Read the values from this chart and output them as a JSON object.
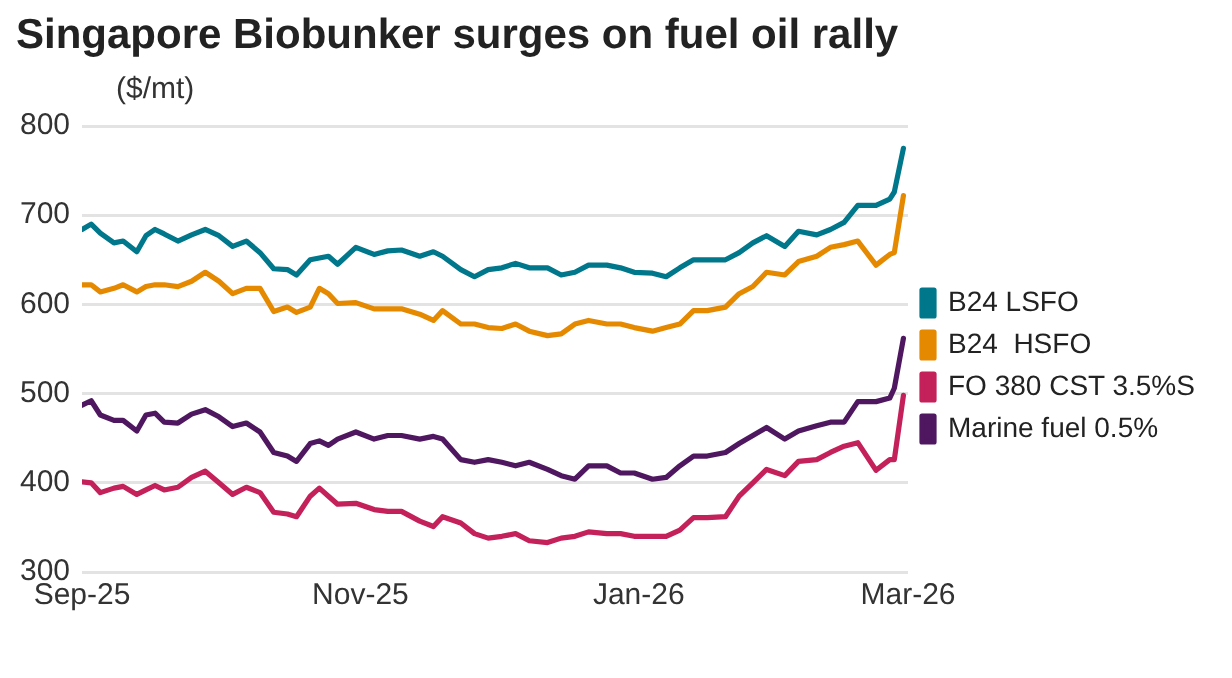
{
  "chart_data": {
    "type": "line",
    "title": "Singapore Biobunker surges on fuel oil rally",
    "ylabel": "($/mt)",
    "x": [
      "2025-09-01",
      "2025-09-03",
      "2025-09-05",
      "2025-09-08",
      "2025-09-10",
      "2025-09-13",
      "2025-09-15",
      "2025-09-17",
      "2025-09-19",
      "2025-09-22",
      "2025-09-25",
      "2025-09-28",
      "2025-10-01",
      "2025-10-04",
      "2025-10-07",
      "2025-10-10",
      "2025-10-13",
      "2025-10-16",
      "2025-10-18",
      "2025-10-21",
      "2025-10-23",
      "2025-10-25",
      "2025-10-27",
      "2025-10-31",
      "2025-11-04",
      "2025-11-07",
      "2025-11-10",
      "2025-11-14",
      "2025-11-17",
      "2025-11-19",
      "2025-11-23",
      "2025-11-26",
      "2025-11-29",
      "2025-12-02",
      "2025-12-05",
      "2025-12-08",
      "2025-12-12",
      "2025-12-15",
      "2025-12-18",
      "2025-12-21",
      "2025-12-25",
      "2025-12-28",
      "2025-12-31",
      "2026-01-04",
      "2026-01-07",
      "2026-01-10",
      "2026-01-13",
      "2026-01-16",
      "2026-01-20",
      "2026-01-23",
      "2026-01-26",
      "2026-01-29",
      "2026-02-02",
      "2026-02-05",
      "2026-02-09",
      "2026-02-12",
      "2026-02-15",
      "2026-02-18",
      "2026-02-22",
      "2026-02-25",
      "2026-02-26",
      "2026-02-28"
    ],
    "series": [
      {
        "name": "B24 LSFO",
        "color": "#00778b",
        "values": [
          684,
          690,
          680,
          669,
          671,
          659,
          677,
          684,
          679,
          671,
          678,
          684,
          677,
          665,
          671,
          658,
          640,
          639,
          633,
          650,
          652,
          654,
          645,
          664,
          656,
          660,
          661,
          654,
          659,
          654,
          639,
          631,
          639,
          641,
          646,
          641,
          641,
          633,
          636,
          644,
          644,
          641,
          636,
          635,
          631,
          641,
          650,
          650,
          650,
          658,
          669,
          677,
          665,
          682,
          678,
          684,
          692,
          711,
          711,
          718,
          726,
          775
        ]
      },
      {
        "name": "B24  HSFO",
        "color": "#e58a00",
        "values": [
          622,
          622,
          614,
          618,
          622,
          614,
          620,
          622,
          622,
          620,
          626,
          636,
          626,
          612,
          618,
          618,
          592,
          597,
          591,
          597,
          618,
          612,
          601,
          602,
          595,
          595,
          595,
          589,
          582,
          593,
          578,
          578,
          574,
          573,
          578,
          570,
          565,
          567,
          578,
          582,
          578,
          578,
          574,
          570,
          574,
          578,
          593,
          593,
          597,
          612,
          620,
          636,
          633,
          648,
          654,
          664,
          667,
          671,
          644,
          656,
          658,
          722
        ]
      },
      {
        "name": "FO 380 CST 3.5%S",
        "color": "#c4205a",
        "values": [
          401,
          400,
          389,
          394,
          396,
          387,
          392,
          397,
          392,
          395,
          406,
          413,
          400,
          387,
          395,
          389,
          367,
          365,
          362,
          385,
          394,
          385,
          376,
          377,
          370,
          368,
          368,
          357,
          351,
          362,
          355,
          343,
          338,
          340,
          343,
          335,
          333,
          338,
          340,
          345,
          343,
          343,
          340,
          340,
          340,
          347,
          361,
          361,
          362,
          385,
          400,
          415,
          408,
          424,
          426,
          434,
          441,
          445,
          414,
          426,
          426,
          498
        ]
      },
      {
        "name": "Marine fuel 0.5%",
        "color": "#4f1760",
        "values": [
          487,
          492,
          476,
          470,
          470,
          458,
          476,
          478,
          468,
          467,
          477,
          482,
          474,
          463,
          467,
          457,
          434,
          430,
          424,
          444,
          447,
          442,
          449,
          457,
          449,
          453,
          453,
          449,
          452,
          449,
          426,
          423,
          426,
          423,
          419,
          423,
          415,
          408,
          404,
          419,
          419,
          411,
          411,
          404,
          406,
          419,
          430,
          430,
          434,
          444,
          453,
          462,
          449,
          458,
          464,
          468,
          468,
          491,
          491,
          495,
          506,
          562
        ]
      }
    ],
    "xlim": [
      "2025-09-01",
      "2026-03-01"
    ],
    "xticks": [
      {
        "value": "2025-09-01",
        "label": "Sep-25"
      },
      {
        "value": "2025-11-01",
        "label": "Nov-25"
      },
      {
        "value": "2026-01-01",
        "label": "Jan-26"
      },
      {
        "value": "2026-03-01",
        "label": "Mar-26"
      }
    ],
    "ylim": [
      300,
      800
    ],
    "yticks": [
      300,
      400,
      500,
      600,
      700,
      800
    ],
    "grid": "y",
    "legend": "right",
    "marker": "none",
    "line_style": "solid"
  }
}
